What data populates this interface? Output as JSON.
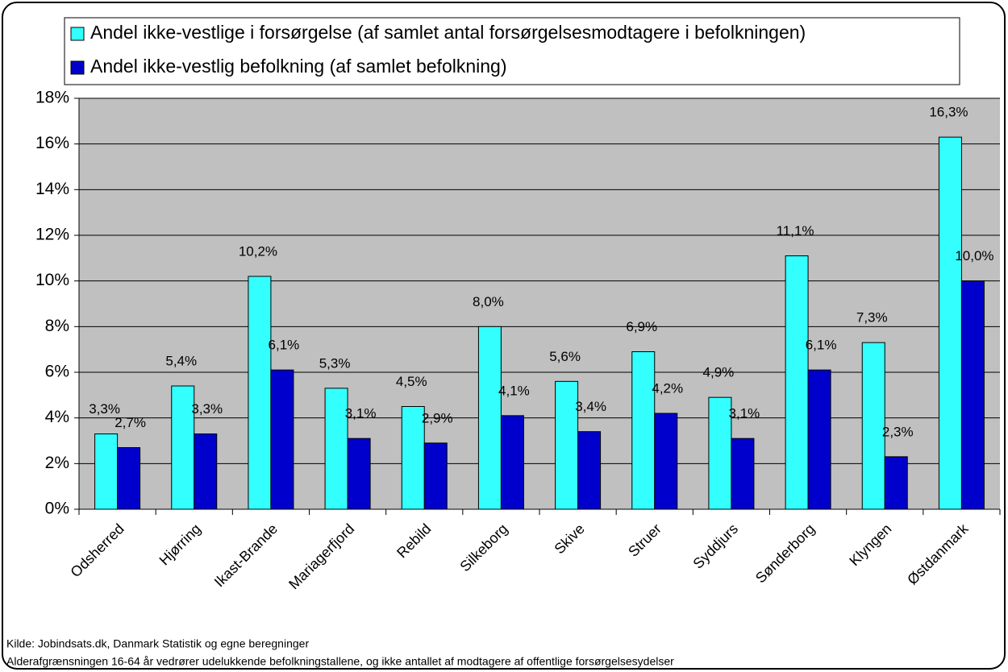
{
  "chart_data": {
    "type": "bar",
    "categories": [
      "Odsherred",
      "Hjørring",
      "Ikast-Brande",
      "Mariagerfjord",
      "Rebild",
      "Silkeborg",
      "Skive",
      "Struer",
      "Syddjurs",
      "Sønderborg",
      "Klyngen",
      "Østdanmark"
    ],
    "series": [
      {
        "name": "Andel ikke-vestlige i forsørgelse (af samlet antal forsørgelsesmodtagere i befolkningen)",
        "color": "#33ffff",
        "values": [
          3.3,
          5.4,
          10.2,
          5.3,
          4.5,
          8.0,
          5.6,
          6.9,
          4.9,
          11.1,
          7.3,
          16.3
        ],
        "value_labels": [
          "3,3%",
          "5,4%",
          "10,2%",
          "5,3%",
          "4,5%",
          "8,0%",
          "5,6%",
          "6,9%",
          "4,9%",
          "11,1%",
          "7,3%",
          "16,3%"
        ]
      },
      {
        "name": "Andel ikke-vestlig befolkning (af samlet befolkning)",
        "color": "#0000cc",
        "values": [
          2.7,
          3.3,
          6.1,
          3.1,
          2.9,
          4.1,
          3.4,
          4.2,
          3.1,
          6.1,
          2.3,
          10.0
        ],
        "value_labels": [
          "2,7%",
          "3,3%",
          "6,1%",
          "3,1%",
          "2,9%",
          "4,1%",
          "3,4%",
          "4,2%",
          "3,1%",
          "6,1%",
          "2,3%",
          "10,0%"
        ]
      }
    ],
    "ylim": [
      0,
      18
    ],
    "yticks": [
      {
        "value": 0,
        "label": "0%"
      },
      {
        "value": 2,
        "label": "2%"
      },
      {
        "value": 4,
        "label": "4%"
      },
      {
        "value": 6,
        "label": "6%"
      },
      {
        "value": 8,
        "label": "8%"
      },
      {
        "value": 10,
        "label": "10%"
      },
      {
        "value": 12,
        "label": "12%"
      },
      {
        "value": 14,
        "label": "14%"
      },
      {
        "value": 16,
        "label": "16%"
      },
      {
        "value": 18,
        "label": "18%"
      }
    ],
    "grid": true,
    "legend": "top",
    "annotations": [
      "Kilde: Jobindsats.dk, Danmark Statistik og egne beregninger",
      "Alderafgrænsningen 16-64 år vedrører udelukkende befolkningstallene, og ikke antallet af modtagere af offentlige forsørgelsesydelser"
    ]
  }
}
